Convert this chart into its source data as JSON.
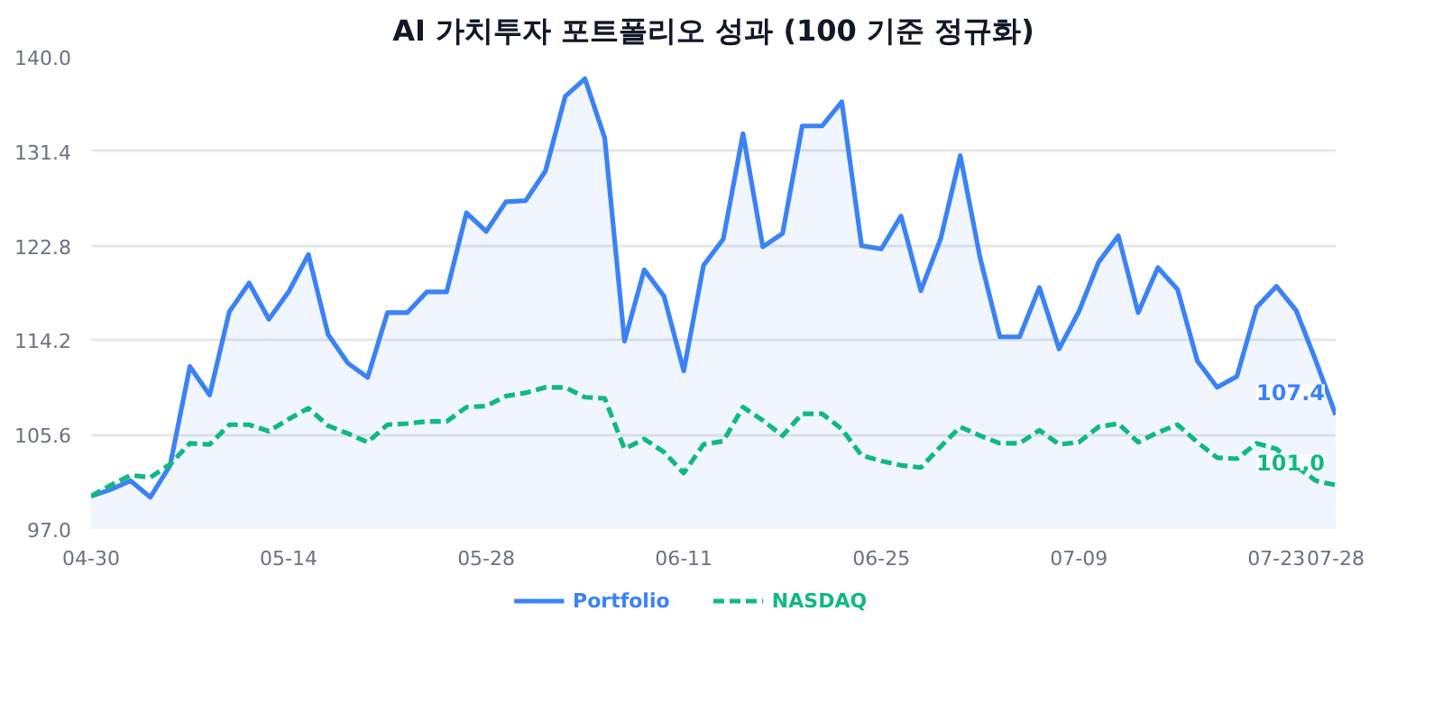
{
  "chart_data": {
    "type": "line",
    "title": "AI 가치투자 포트폴리오 성과 (100 기준 정규화)",
    "categories": [
      "04-30",
      null,
      null,
      null,
      null,
      null,
      null,
      null,
      null,
      null,
      "05-14",
      null,
      null,
      null,
      null,
      null,
      null,
      null,
      null,
      null,
      "05-28",
      null,
      null,
      null,
      null,
      null,
      null,
      null,
      null,
      null,
      "06-11",
      null,
      null,
      null,
      null,
      null,
      null,
      null,
      null,
      null,
      "06-25",
      null,
      null,
      null,
      null,
      null,
      null,
      null,
      null,
      null,
      "07-09",
      null,
      null,
      null,
      null,
      null,
      null,
      null,
      null,
      null,
      "07-23",
      null,
      null,
      "07-28"
    ],
    "ylim": [
      97.0,
      140.0
    ],
    "yticks": [
      {
        "value": 97,
        "label": "97.0"
      },
      {
        "value": 105.6,
        "label": "105.6"
      },
      {
        "value": 114.2,
        "label": "114.2"
      },
      {
        "value": 122.8,
        "label": "122.8"
      },
      {
        "value": 131.4,
        "label": "131.4"
      },
      {
        "value": 140,
        "label": "140.0"
      }
    ],
    "grid": "y",
    "legend": "bottom",
    "series": [
      {
        "name": "Portfolio",
        "type": "area",
        "color": "#3b82f6",
        "line_style": "solid",
        "values": [
          100.0,
          100.6,
          101.4,
          99.9,
          102.8,
          111.8,
          109.2,
          116.8,
          119.4,
          116.1,
          118.6,
          122.0,
          114.7,
          112.1,
          110.8,
          116.7,
          116.7,
          118.6,
          118.6,
          125.8,
          124.1,
          126.8,
          126.9,
          129.6,
          136.4,
          138.0,
          132.6,
          114.1,
          120.6,
          118.2,
          111.4,
          121.0,
          123.4,
          133.0,
          122.7,
          123.9,
          133.7,
          133.7,
          135.9,
          122.8,
          122.5,
          125.5,
          118.7,
          123.4,
          131.0,
          121.7,
          114.5,
          114.5,
          119.0,
          113.4,
          116.8,
          121.3,
          123.7,
          116.7,
          120.8,
          118.8,
          112.3,
          109.9,
          110.9,
          117.2,
          119.1,
          116.9,
          112.3,
          107.4
        ],
        "value_labels": [
          null,
          null,
          null,
          null,
          null,
          null,
          null,
          null,
          null,
          null,
          null,
          null,
          null,
          null,
          null,
          null,
          null,
          null,
          null,
          null,
          null,
          null,
          null,
          null,
          null,
          null,
          null,
          null,
          null,
          null,
          null,
          null,
          null,
          null,
          null,
          null,
          null,
          null,
          null,
          null,
          null,
          null,
          null,
          null,
          null,
          null,
          null,
          null,
          null,
          null,
          null,
          null,
          null,
          null,
          null,
          null,
          null,
          null,
          null,
          null,
          null,
          null,
          null,
          "107.4"
        ]
      },
      {
        "name": "NASDAQ",
        "type": "line",
        "color": "#10b981",
        "line_style": "dashed",
        "values": [
          100.0,
          101.0,
          101.9,
          101.7,
          102.9,
          104.8,
          104.7,
          106.5,
          106.5,
          105.9,
          107.0,
          108.0,
          106.4,
          105.7,
          104.9,
          106.5,
          106.6,
          106.8,
          106.8,
          108.1,
          108.2,
          109.1,
          109.4,
          109.9,
          109.9,
          109.0,
          108.9,
          104.3,
          105.2,
          104.0,
          102.1,
          104.7,
          105.0,
          108.1,
          106.9,
          105.5,
          107.5,
          107.5,
          106.1,
          103.7,
          103.2,
          102.8,
          102.6,
          104.5,
          106.3,
          105.5,
          104.8,
          104.8,
          106.0,
          104.7,
          104.9,
          106.3,
          106.6,
          104.9,
          105.8,
          106.5,
          104.9,
          103.5,
          103.4,
          104.8,
          104.3,
          102.7,
          101.4,
          101.0
        ],
        "value_labels": [
          null,
          null,
          null,
          null,
          null,
          null,
          null,
          null,
          null,
          null,
          null,
          null,
          null,
          null,
          null,
          null,
          null,
          null,
          null,
          null,
          null,
          null,
          null,
          null,
          null,
          null,
          null,
          null,
          null,
          null,
          null,
          null,
          null,
          null,
          null,
          null,
          null,
          null,
          null,
          null,
          null,
          null,
          null,
          null,
          null,
          null,
          null,
          null,
          null,
          null,
          null,
          null,
          null,
          null,
          null,
          null,
          null,
          null,
          null,
          null,
          null,
          null,
          null,
          "101.0"
        ]
      }
    ]
  }
}
